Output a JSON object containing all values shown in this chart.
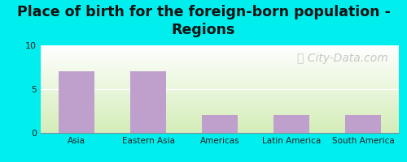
{
  "categories": [
    "Asia",
    "Eastern Asia",
    "Americas",
    "Latin America",
    "South America"
  ],
  "values": [
    7,
    7,
    2,
    2,
    2
  ],
  "bar_color": "#bf9fcc",
  "background_color": "#00eeee",
  "plot_bg_top": "#ffffff",
  "plot_bg_bottom": "#d4edb8",
  "title_line1": "Place of birth for the foreign-born population -",
  "title_line2": "Regions",
  "title_fontsize": 12.5,
  "title_color": "#111111",
  "tick_label_color": "#222222",
  "ylim": [
    0,
    10
  ],
  "yticks": [
    0,
    5,
    10
  ],
  "watermark_text": "ⓘ City-Data.com",
  "watermark_color": "#c8c8c8",
  "watermark_fontsize": 10
}
